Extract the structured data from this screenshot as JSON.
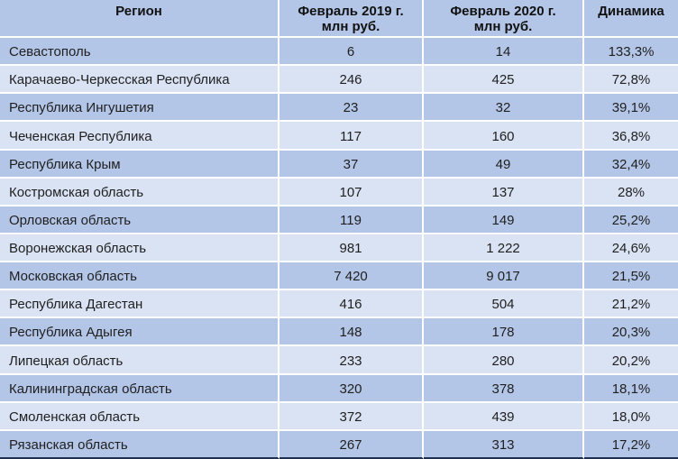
{
  "table": {
    "columns": [
      {
        "label": "Регион",
        "sublabel": ""
      },
      {
        "label": "Февраль 2019 г.",
        "sublabel": "млн руб."
      },
      {
        "label": "Февраль 2020 г.",
        "sublabel": "млн руб."
      },
      {
        "label": "Динамика",
        "sublabel": ""
      }
    ],
    "rows": [
      [
        "Севастополь",
        "6",
        "14",
        "133,3%"
      ],
      [
        "Карачаево-Черкесская Республика",
        "246",
        "425",
        "72,8%"
      ],
      [
        "Республика Ингушетия",
        "23",
        "32",
        "39,1%"
      ],
      [
        "Чеченская Республика",
        "117",
        "160",
        "36,8%"
      ],
      [
        "Республика Крым",
        "37",
        "49",
        "32,4%"
      ],
      [
        "Костромская область",
        "107",
        "137",
        "28%"
      ],
      [
        "Орловская область",
        "119",
        "149",
        "25,2%"
      ],
      [
        "Воронежская область",
        "981",
        "1 222",
        "24,6%"
      ],
      [
        "Московская область",
        "7 420",
        "9 017",
        "21,5%"
      ],
      [
        "Республика Дагестан",
        "416",
        "504",
        "21,2%"
      ],
      [
        "Республика Адыгея",
        "148",
        "178",
        "20,3%"
      ],
      [
        "Липецкая область",
        "233",
        "280",
        "20,2%"
      ],
      [
        "Калининградская область",
        "320",
        "378",
        "18,1%"
      ],
      [
        "Смоленская область",
        "372",
        "439",
        "18,0%"
      ],
      [
        "Рязанская область",
        "267",
        "313",
        "17,2%"
      ]
    ]
  },
  "colors": {
    "header_bg": "#b4c6e7",
    "row_odd": "#b4c6e7",
    "row_even": "#dae3f3",
    "grid": "#ffffff",
    "bottom_border": "#1f3050",
    "header_text": "#111111",
    "body_text": "#1f1f1f"
  },
  "chart_data": {
    "type": "table",
    "title": "",
    "columns": [
      "Регион",
      "Февраль 2019 г. млн руб.",
      "Февраль 2020 г. млн руб.",
      "Динамика"
    ],
    "categories": [
      "Севастополь",
      "Карачаево-Черкесская Республика",
      "Республика Ингушетия",
      "Чеченская Республика",
      "Республика Крым",
      "Костромская область",
      "Орловская область",
      "Воронежская область",
      "Московская область",
      "Республика Дагестан",
      "Республика Адыгея",
      "Липецкая область",
      "Калининградская область",
      "Смоленская область",
      "Рязанская область"
    ],
    "series": [
      {
        "name": "Февраль 2019 г. млн руб.",
        "values": [
          6,
          246,
          23,
          117,
          37,
          107,
          119,
          981,
          7420,
          416,
          148,
          233,
          320,
          372,
          267
        ]
      },
      {
        "name": "Февраль 2020 г. млн руб.",
        "values": [
          14,
          425,
          32,
          160,
          49,
          137,
          149,
          1222,
          9017,
          504,
          178,
          280,
          378,
          439,
          313
        ]
      },
      {
        "name": "Динамика %",
        "values": [
          133.3,
          72.8,
          39.1,
          36.8,
          32.4,
          28.0,
          25.2,
          24.6,
          21.5,
          21.2,
          20.3,
          20.2,
          18.1,
          18.0,
          17.2
        ]
      }
    ],
    "layout_hints": {
      "striped_rows": true,
      "grid": "white separators",
      "legend": "none"
    }
  }
}
